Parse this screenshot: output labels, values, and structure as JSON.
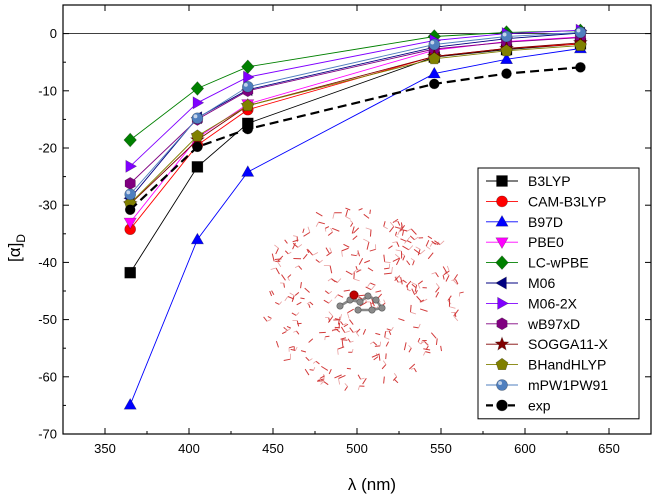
{
  "chart_data": {
    "type": "line",
    "title": "",
    "xlabel": "λ (nm)",
    "ylabel": "[α]",
    "ylabel_subscript": "D",
    "xlim": [
      325,
      675
    ],
    "ylim": [
      -70,
      5
    ],
    "xticks": [
      350,
      400,
      450,
      500,
      550,
      600,
      650
    ],
    "yticks": [
      0,
      -10,
      -20,
      -30,
      -40,
      -50,
      -60,
      -70
    ],
    "grid": false,
    "legend_position": "right-middle",
    "x": [
      365,
      405,
      435,
      546,
      589,
      633
    ],
    "series": [
      {
        "name": "B3LYP",
        "values": [
          -41.8,
          -23.3,
          -15.7,
          -4.1,
          -2.8,
          -1.8
        ],
        "color": "#000000",
        "marker": "square",
        "dashed": false
      },
      {
        "name": "CAM-B3LYP",
        "values": [
          -34.2,
          -19.5,
          -13.3,
          -4.0,
          -2.6,
          -1.8
        ],
        "color": "#ff0000",
        "marker": "circle",
        "dashed": false
      },
      {
        "name": "B97D",
        "values": [
          -64.9,
          -36.0,
          -24.2,
          -7.0,
          -4.5,
          -2.6
        ],
        "color": "#0000ff",
        "marker": "triangle-up",
        "dashed": false
      },
      {
        "name": "PBE0",
        "values": [
          -33.0,
          -18.2,
          -12.3,
          -2.9,
          -1.4,
          -0.6
        ],
        "color": "#ff00ff",
        "marker": "triangle-down",
        "dashed": false
      },
      {
        "name": "LC-wPBE",
        "values": [
          -18.6,
          -9.6,
          -5.8,
          -0.5,
          0.2,
          0.5
        ],
        "color": "#008000",
        "marker": "diamond",
        "dashed": false
      },
      {
        "name": "M06",
        "values": [
          -28.8,
          -14.7,
          -9.8,
          -2.4,
          -0.9,
          0.1
        ],
        "color": "#000080",
        "marker": "triangle-left",
        "dashed": false
      },
      {
        "name": "M06-2X",
        "values": [
          -23.2,
          -12.1,
          -7.6,
          -1.2,
          0.0,
          0.6
        ],
        "color": "#8000ff",
        "marker": "triangle-right",
        "dashed": false
      },
      {
        "name": "wB97xD",
        "values": [
          -26.2,
          -15.0,
          -10.0,
          -2.7,
          -1.5,
          -0.7
        ],
        "color": "#800080",
        "marker": "hexagon",
        "dashed": false
      },
      {
        "name": "SOGGA11-X",
        "values": [
          -29.8,
          -18.6,
          -12.6,
          -4.0,
          -2.6,
          -1.6
        ],
        "color": "#800000",
        "marker": "star",
        "dashed": false
      },
      {
        "name": "BHandHLYP",
        "values": [
          -29.7,
          -17.9,
          -12.6,
          -4.4,
          -3.0,
          -2.1
        ],
        "color": "#808000",
        "marker": "pentagon",
        "dashed": false
      },
      {
        "name": "mPW1PW91",
        "values": [
          -28.1,
          -14.8,
          -9.3,
          -1.9,
          -0.5,
          0.2
        ],
        "color": "#4f7fbf",
        "marker": "sphere",
        "dashed": false
      },
      {
        "name": "exp",
        "values": [
          -30.8,
          -19.8,
          -16.7,
          -8.8,
          -7.0,
          -5.9
        ],
        "color": "#000000",
        "marker": "circle",
        "dashed": true
      }
    ]
  }
}
